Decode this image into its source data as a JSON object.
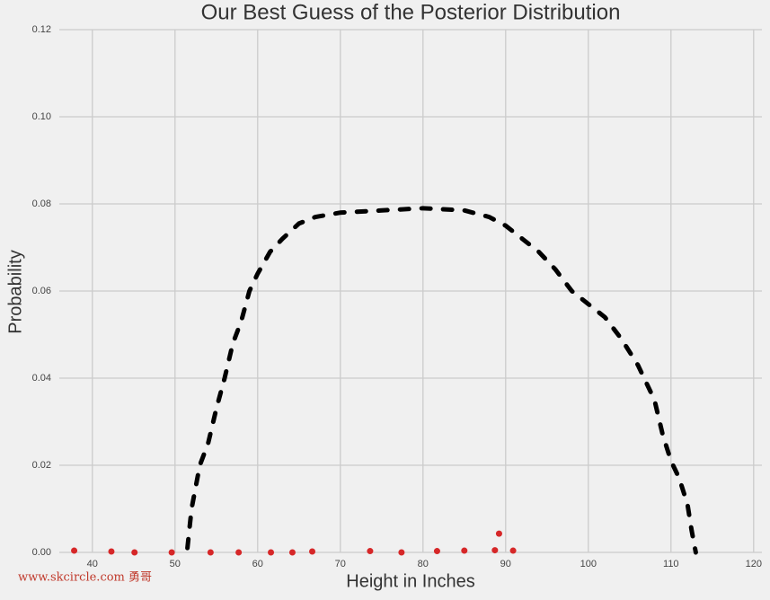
{
  "chart_data": {
    "type": "line",
    "title": "Our Best Guess of the Posterior Distribution",
    "x_label": "Height in Inches",
    "y_label": "Probability",
    "watermark": "www.skcircle.com 勇哥",
    "xlim": [
      36,
      121
    ],
    "ylim": [
      0,
      0.12
    ],
    "xticks": [
      40,
      50,
      60,
      70,
      80,
      90,
      100,
      110,
      120
    ],
    "yticks": [
      {
        "value": 0,
        "label": "0.00"
      },
      {
        "value": 0.02,
        "label": "0.02"
      },
      {
        "value": 0.04,
        "label": "0.04"
      },
      {
        "value": 0.06,
        "label": "0.06"
      },
      {
        "value": 0.08,
        "label": "0.08"
      },
      {
        "value": 0.1,
        "label": "0.10"
      },
      {
        "value": 0.12,
        "label": "0.12"
      }
    ],
    "grid": true,
    "series": [
      {
        "color": "#000000",
        "style": "dashed",
        "x": [
          51.5,
          52,
          53,
          54,
          55,
          56,
          57,
          58,
          59,
          60,
          61.5,
          63,
          65,
          67,
          70,
          75,
          80,
          85,
          88,
          90,
          92,
          94,
          96,
          98,
          100,
          102,
          104,
          106,
          108,
          109,
          110,
          111,
          112,
          112.5,
          113
        ],
        "values": [
          0.001,
          0.01,
          0.02,
          0.025,
          0.033,
          0.04,
          0.048,
          0.053,
          0.06,
          0.064,
          0.069,
          0.072,
          0.0755,
          0.077,
          0.078,
          0.0785,
          0.079,
          0.0785,
          0.077,
          0.075,
          0.072,
          0.069,
          0.065,
          0.06,
          0.057,
          0.054,
          0.049,
          0.043,
          0.035,
          0.027,
          0.021,
          0.017,
          0.011,
          0.005,
          0
        ]
      },
      {
        "color": "#d62728",
        "style": "markers",
        "x": [
          37.8,
          42.3,
          45.1,
          49.6,
          54.3,
          57.7,
          61.6,
          64.2,
          66.6,
          73.6,
          77.4,
          81.7,
          85.0,
          88.7,
          89.2,
          90.9
        ],
        "values": [
          0.0004,
          0.0002,
          0,
          0,
          0,
          0,
          0,
          0,
          0.0002,
          0.0003,
          0,
          0.0003,
          0.0004,
          0.0005,
          0.0043,
          0.0004
        ]
      }
    ]
  }
}
